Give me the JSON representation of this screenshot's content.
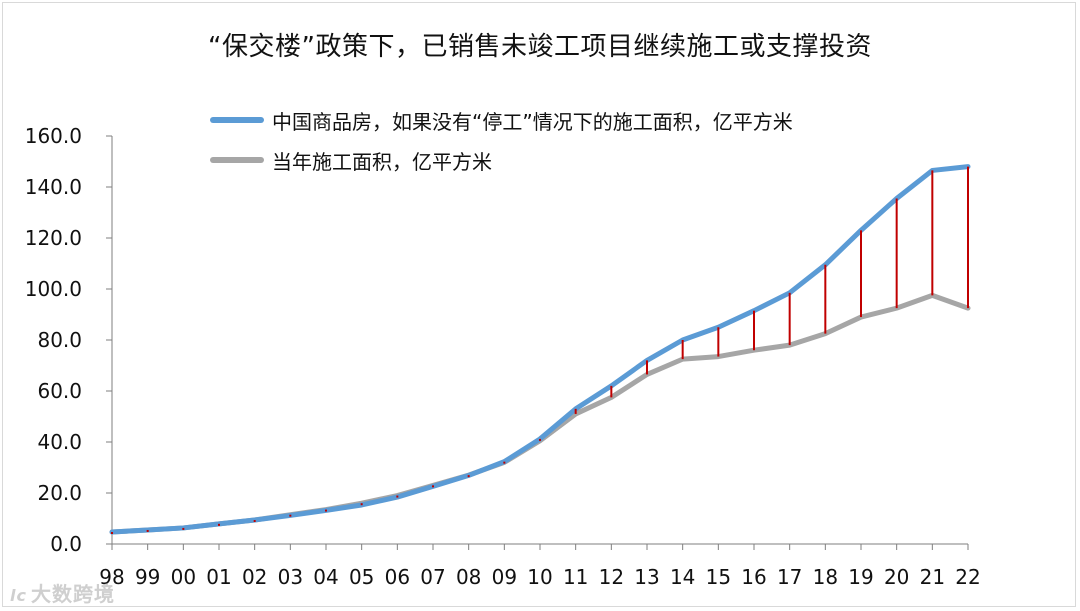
{
  "chart_data": {
    "type": "line",
    "title": "“保交楼”政策下，已销售未竣工项目继续施工或支撑投资",
    "categories": [
      "98",
      "99",
      "00",
      "01",
      "02",
      "03",
      "04",
      "05",
      "06",
      "07",
      "08",
      "09",
      "10",
      "11",
      "12",
      "13",
      "14",
      "15",
      "16",
      "17",
      "18",
      "19",
      "20",
      "21",
      "22"
    ],
    "series": [
      {
        "name": "中国商品房，如果没有“停工”情况下的施工面积，亿平方米",
        "color": "#5b9bd5",
        "values": [
          4.7,
          5.5,
          6.3,
          7.9,
          9.4,
          11.2,
          13.2,
          15.3,
          18.4,
          22.6,
          26.9,
          32.3,
          41.2,
          53.0,
          62.0,
          72.0,
          80.0,
          85.0,
          91.5,
          98.5,
          109.5,
          123.0,
          135.5,
          146.5,
          148.0
        ]
      },
      {
        "name": "当年施工面积，亿平方米",
        "color": "#a6a6a6",
        "values": [
          4.7,
          5.5,
          6.3,
          7.9,
          9.4,
          11.5,
          13.5,
          16.0,
          19.0,
          23.0,
          27.0,
          32.0,
          40.5,
          51.0,
          57.5,
          66.5,
          72.5,
          73.5,
          76.0,
          78.0,
          82.5,
          89.0,
          92.5,
          97.5,
          92.5
        ]
      }
    ],
    "gap_line_color": "#c00000",
    "yticks": [
      "0.0",
      "20.0",
      "40.0",
      "60.0",
      "80.0",
      "100.0",
      "120.0",
      "140.0",
      "160.0"
    ],
    "ylim": [
      0,
      160
    ],
    "xlabel": "",
    "ylabel": "",
    "legend_position": "top-left"
  },
  "watermark": {
    "logo": "lc",
    "text": "大数跨境"
  }
}
